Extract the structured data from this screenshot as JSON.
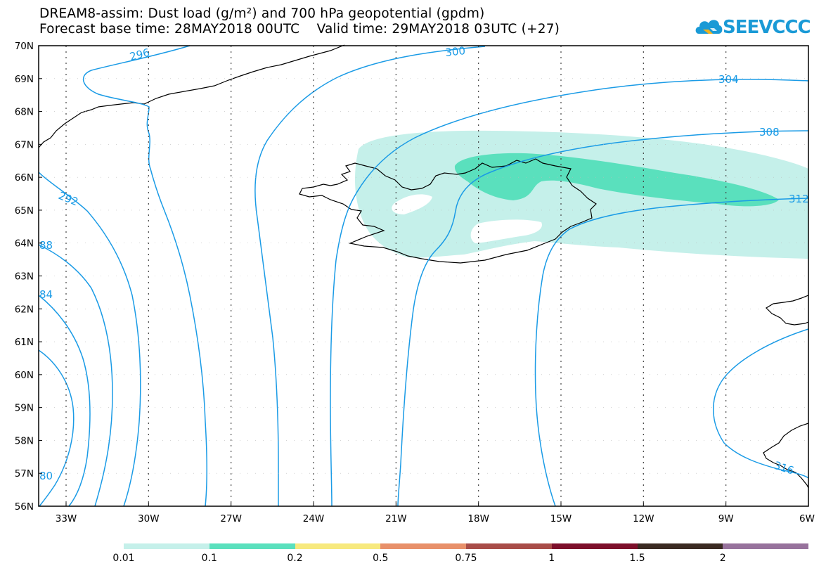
{
  "header": {
    "title_line1": "DREAM8-assim: Dust load (g/m²) and 700 hPa geopotential (gpdm)",
    "title_line2": "Forecast base time: 28MAY2018 00UTC    Valid time: 29MAY2018 03UTC (+27)"
  },
  "logo": {
    "text": "SEEVCCC",
    "icon": "cloud-icon",
    "color": "#1a9ad6"
  },
  "axes": {
    "lat_labels": [
      "70N",
      "69N",
      "68N",
      "67N",
      "66N",
      "65N",
      "64N",
      "63N",
      "62N",
      "61N",
      "60N",
      "59N",
      "58N",
      "57N",
      "56N"
    ],
    "lon_labels": [
      "33W",
      "30W",
      "27W",
      "24W",
      "21W",
      "18W",
      "15W",
      "12W",
      "9W",
      "6W"
    ]
  },
  "contours": {
    "color": "#1a9be6",
    "labels": [
      "296",
      "300",
      "304",
      "308",
      "312",
      "292",
      "88",
      "84",
      "80",
      "316"
    ]
  },
  "dust": {
    "light_color": "#c5f0ea",
    "mid_color": "#5ae0bd"
  },
  "colorbar": {
    "colors": [
      "#c5f0ea",
      "#5ae0bd",
      "#f7e97e",
      "#e8906a",
      "#a84c48",
      "#7d0f2b",
      "#3a2a22",
      "#97729c"
    ],
    "labels": [
      "0.01",
      "0.1",
      "0.2",
      "0.5",
      "0.75",
      "1",
      "1.5",
      "2"
    ]
  }
}
